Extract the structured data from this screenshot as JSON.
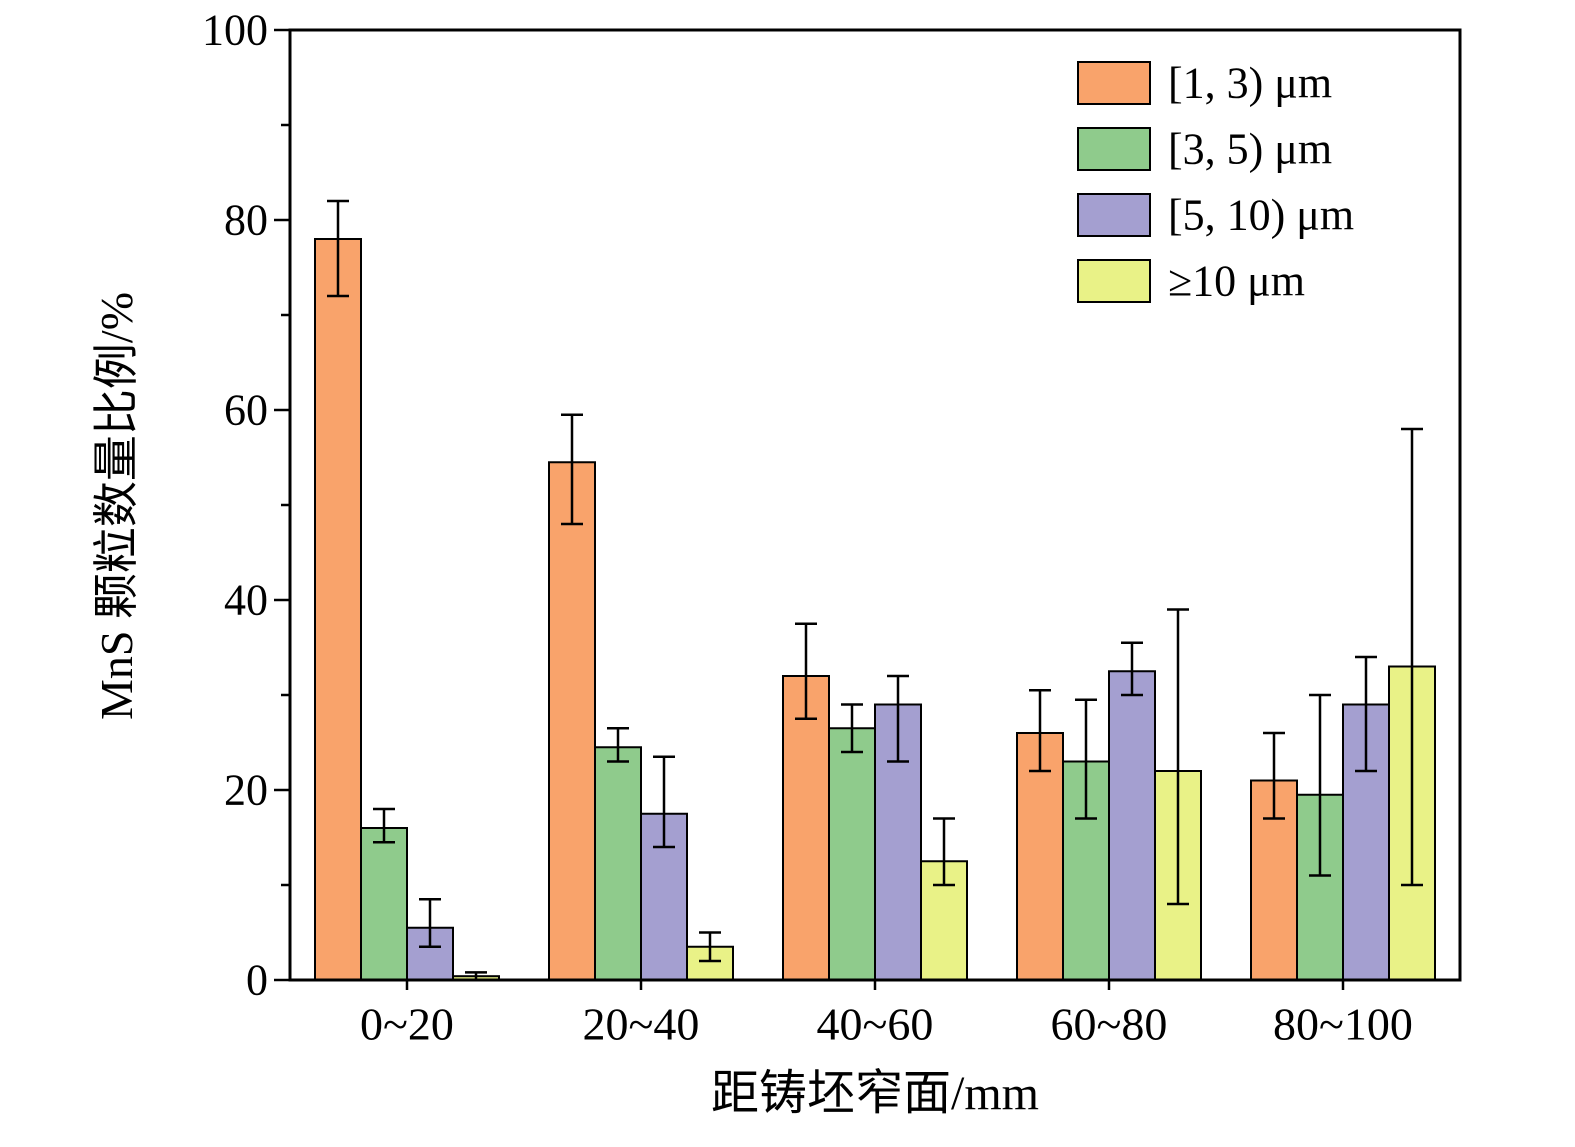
{
  "chart_data": {
    "type": "bar",
    "title": "",
    "xlabel": "距铸坯窄面/mm",
    "ylabel": "MnS 颗粒数量比例/%",
    "categories": [
      "0~20",
      "20~40",
      "40~60",
      "60~80",
      "80~100"
    ],
    "ylim": [
      0,
      100
    ],
    "ytick_major": 20,
    "ytick_minor": 10,
    "grid": false,
    "legend_position": "top-right-inside",
    "bar_edge_color": "#000000",
    "error_bar_color": "#000000",
    "series": [
      {
        "name": "[1, 3) μm",
        "color": "#F9A36B",
        "values": [
          78,
          54.5,
          32,
          26,
          21
        ],
        "err_minus": [
          6,
          6.5,
          4.5,
          4,
          4
        ],
        "err_plus": [
          4,
          5,
          5.5,
          4.5,
          5
        ]
      },
      {
        "name": "[3, 5) μm",
        "color": "#8FCB8C",
        "values": [
          16,
          24.5,
          26.5,
          23,
          19.5
        ],
        "err_minus": [
          1.5,
          1.5,
          2.5,
          6,
          8.5
        ],
        "err_plus": [
          2,
          2,
          2.5,
          6.5,
          10.5
        ]
      },
      {
        "name": "[5, 10) μm",
        "color": "#A49FD0",
        "values": [
          5.5,
          17.5,
          29,
          32.5,
          29
        ],
        "err_minus": [
          2,
          3.5,
          6,
          2.5,
          7
        ],
        "err_plus": [
          3,
          6,
          3,
          3,
          5
        ]
      },
      {
        "name": "≥10 μm",
        "color": "#E9F287",
        "values": [
          0.4,
          3.5,
          12.5,
          22,
          33
        ],
        "err_minus": [
          0.4,
          1.5,
          2.5,
          14,
          23
        ],
        "err_plus": [
          0.4,
          1.5,
          4.5,
          17,
          25
        ]
      }
    ]
  }
}
